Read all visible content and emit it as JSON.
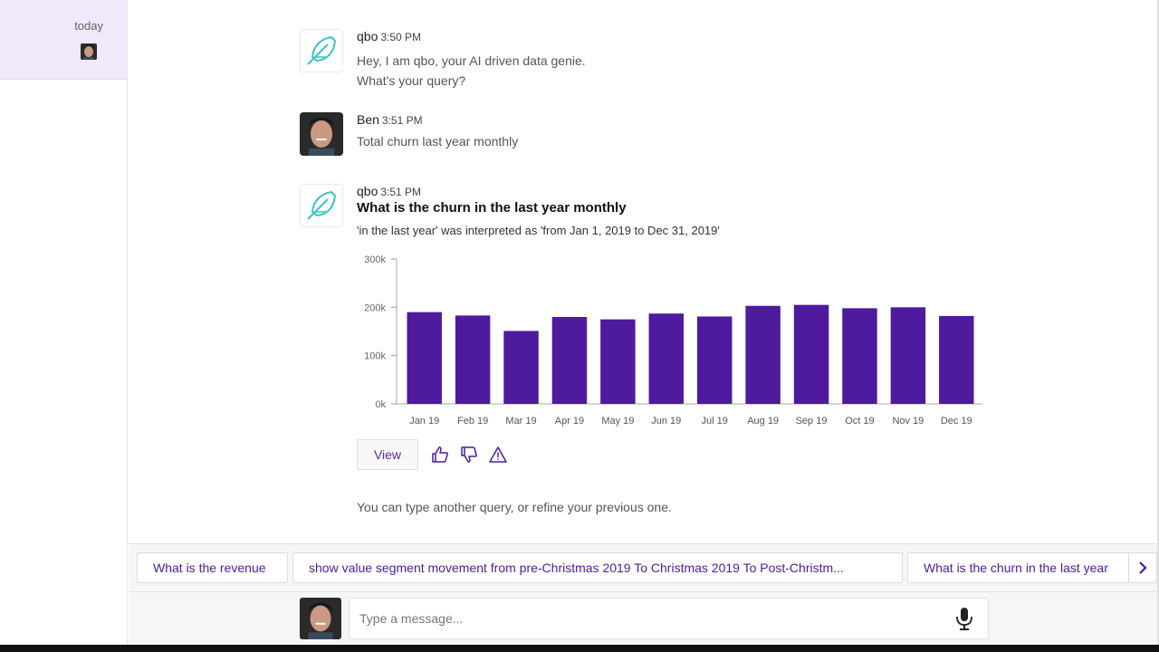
{
  "sidebar": {
    "section_label": "today"
  },
  "messages": [
    {
      "sender": "qbo",
      "time": "3:50 PM",
      "lines": [
        "Hey, I am qbo, your AI driven data genie.",
        "What's your query?"
      ]
    },
    {
      "sender": "Ben",
      "time": "3:51 PM",
      "text": "Total churn last year monthly"
    },
    {
      "sender": "qbo",
      "time": "3:51 PM",
      "question": "What is the churn in the last year monthly",
      "interpretation": "'in the last year' was interpreted as 'from Jan 1, 2019 to Dec 31, 2019'"
    }
  ],
  "chart_data": {
    "type": "bar",
    "categories": [
      "Jan 19",
      "Feb 19",
      "Mar 19",
      "Apr 19",
      "May 19",
      "Jun 19",
      "Jul 19",
      "Aug 19",
      "Sep 19",
      "Oct 19",
      "Nov 19",
      "Dec 19"
    ],
    "values": [
      190000,
      183000,
      151000,
      180000,
      175000,
      187000,
      181000,
      203000,
      205000,
      198000,
      200000,
      182000
    ],
    "yticks": [
      "0k",
      "100k",
      "200k",
      "300k"
    ],
    "ylim": [
      0,
      300000
    ],
    "bar_color": "#4e1a9e"
  },
  "actions": {
    "view_label": "View",
    "like_icon": "thumbs-up-icon",
    "dislike_icon": "thumbs-down-icon",
    "report_icon": "warning-icon"
  },
  "hint": "You can type another query, or refine your previous one.",
  "suggestions": [
    "What is the revenue",
    "show value segment movement from pre-Christmas 2019 To Christmas 2019 To Post-Christm...",
    "What is the churn in the last year"
  ],
  "input": {
    "placeholder": "Type a message..."
  },
  "colors": {
    "accent": "#4e1a9e",
    "bot_icon": "#3fc1c9",
    "sidebar_highlight": "#efe9fb"
  }
}
